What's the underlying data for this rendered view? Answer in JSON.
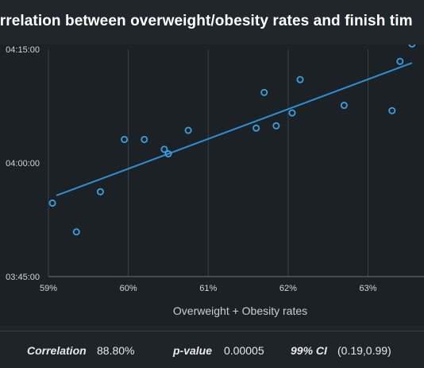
{
  "title": "orrelation between overweight/obesity rates and finish tim",
  "chart_data": {
    "type": "scatter",
    "title": "orrelation between overweight/obesity rates and finish tim",
    "xlabel": "Overweight + Obesity rates",
    "ylabel": "",
    "xlim": [
      59.0,
      63.7
    ],
    "ylim": [
      225,
      255
    ],
    "x_tick_labels": [
      "59%",
      "60%",
      "61%",
      "62%",
      "63%"
    ],
    "x_ticks": [
      59,
      60,
      61,
      62,
      63
    ],
    "y_tick_labels": [
      "03:45:00",
      "04:00:00",
      "04:15:00"
    ],
    "y_ticks": [
      225,
      240,
      255
    ],
    "grid": "vertical",
    "points": [
      {
        "x": 59.05,
        "y": 234.7
      },
      {
        "x": 59.35,
        "y": 230.9
      },
      {
        "x": 59.65,
        "y": 236.2
      },
      {
        "x": 59.95,
        "y": 243.1
      },
      {
        "x": 60.2,
        "y": 243.1
      },
      {
        "x": 60.45,
        "y": 241.8
      },
      {
        "x": 60.5,
        "y": 241.2
      },
      {
        "x": 60.75,
        "y": 244.3
      },
      {
        "x": 61.6,
        "y": 244.6
      },
      {
        "x": 61.7,
        "y": 249.3
      },
      {
        "x": 61.85,
        "y": 244.9
      },
      {
        "x": 62.05,
        "y": 246.6
      },
      {
        "x": 62.15,
        "y": 251.0
      },
      {
        "x": 62.7,
        "y": 247.6
      },
      {
        "x": 63.3,
        "y": 246.9
      },
      {
        "x": 63.4,
        "y": 253.4
      },
      {
        "x": 63.55,
        "y": 255.7
      }
    ],
    "trendline": [
      [
        59.1,
        235.7
      ],
      [
        63.55,
        253.2
      ]
    ],
    "colors": {
      "point": "#3aa0e0",
      "line": "#2f8fd6",
      "grid": "#3a4148"
    }
  },
  "stats": {
    "correlation_label": "Correlation",
    "correlation_value": "88.80%",
    "pvalue_label": "p-value",
    "pvalue_value": "0.00005",
    "ci_label": "99% CI",
    "ci_value": "(0.19,0.99)"
  }
}
